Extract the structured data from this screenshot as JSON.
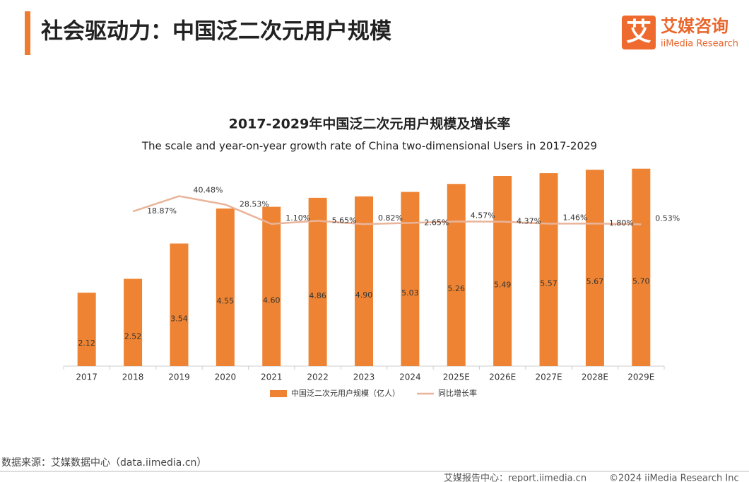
{
  "header": {
    "title": "社会驱动力：中国泛二次元用户规模",
    "logo_mark": "艾",
    "logo_name": "艾媒咨询",
    "logo_sub": "iiMedia Research"
  },
  "chart_data": {
    "type": "bar",
    "title": "2017-2029年中国泛二次元用户规模及增长率",
    "subtitle": "The scale and year-on-year growth rate of China two-dimensional Users in 2017-2029",
    "categories": [
      "2017",
      "2018",
      "2019",
      "2020",
      "2021",
      "2022",
      "2023",
      "2024",
      "2025E",
      "2026E",
      "2027E",
      "2028E",
      "2029E"
    ],
    "series": [
      {
        "name": "中国泛二次元用户规模（亿人）",
        "type": "bar",
        "color": "#ee8433",
        "values": [
          2.12,
          2.52,
          3.54,
          4.55,
          4.6,
          4.86,
          4.9,
          5.03,
          5.26,
          5.49,
          5.57,
          5.67,
          5.7
        ],
        "value_labels": [
          "2.12",
          "2.52",
          "3.54",
          "4.55",
          "4.60",
          "4.86",
          "4.90",
          "5.03",
          "5.26",
          "5.49",
          "5.57",
          "5.67",
          "5.70"
        ]
      },
      {
        "name": "同比增长率",
        "type": "line",
        "axis": "y2",
        "color": "#e9b49a",
        "values": [
          null,
          18.87,
          40.48,
          28.53,
          1.1,
          5.65,
          0.82,
          2.65,
          4.57,
          4.37,
          1.46,
          1.8,
          0.53
        ],
        "value_labels": [
          null,
          "18.87%",
          "40.48%",
          "28.53%",
          "1.10%",
          "5.65%",
          "0.82%",
          "2.65%",
          "4.57%",
          "4.37%",
          "1.46%",
          "1.80%",
          "0.53%"
        ]
      }
    ],
    "ylim": [
      0,
      6
    ],
    "y2lim": [
      -200,
      100
    ]
  },
  "source": "数据来源：艾媒数据中心（data.iimedia.cn）",
  "footer": {
    "left": "艾媒报告中心：report.iimedia.cn",
    "right": "©2024  iiMedia Research Inc"
  }
}
